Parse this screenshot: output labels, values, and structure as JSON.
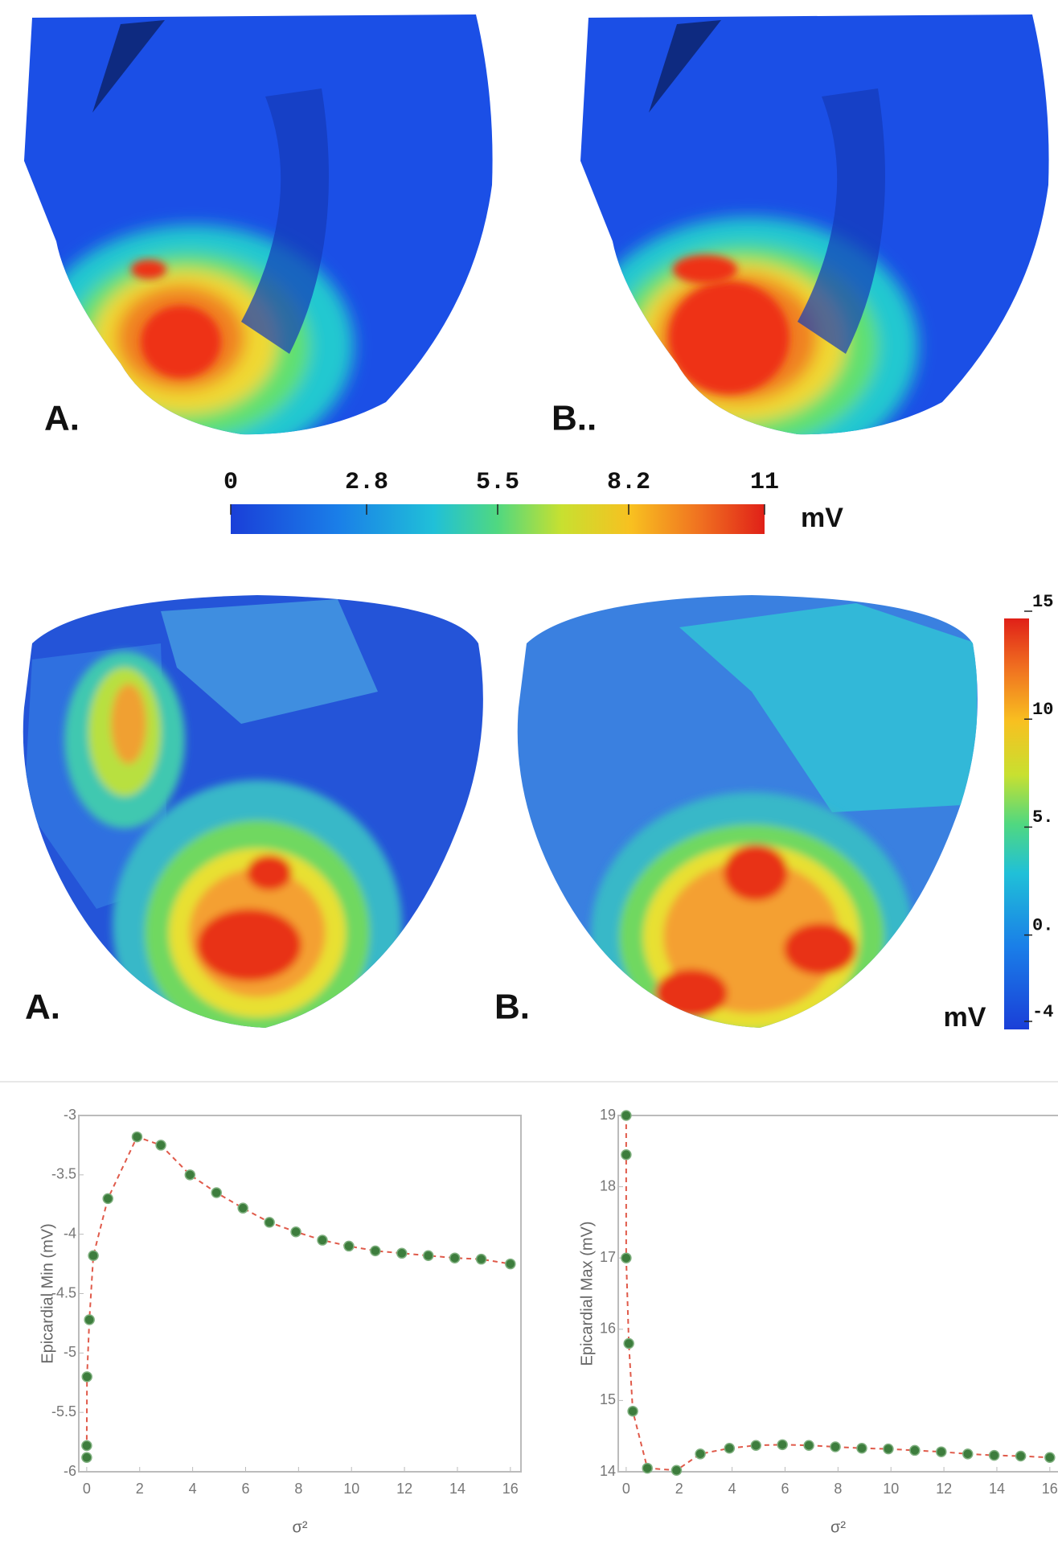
{
  "figure": {
    "top_labels": [
      "A.",
      "B.."
    ],
    "colorbar_1": {
      "lim": [
        0,
        11
      ],
      "ticks": [
        0,
        2.8,
        5.5,
        8.2,
        11
      ],
      "unit": "mV"
    },
    "bottom_labels": [
      "A.",
      "B."
    ],
    "colorbar_2": {
      "lim": [
        -4,
        15
      ],
      "ticks": [
        15,
        10,
        {
          "value": 5,
          "label": "5."
        },
        {
          "value": 0,
          "label": "0."
        },
        -4
      ],
      "unit": "mV"
    }
  },
  "chart_data": [
    {
      "type": "line",
      "ylabel": "Epicardial Min (mV)",
      "xlabel": "σ²",
      "x": [
        0,
        0,
        0.01,
        0.1,
        0.25,
        0.8,
        1.9,
        2.8,
        3.9,
        4.9,
        5.9,
        6.9,
        7.9,
        8.9,
        9.9,
        10.9,
        11.9,
        12.9,
        13.9,
        14.9,
        16
      ],
      "values": [
        -5.88,
        -5.78,
        -5.2,
        -4.72,
        -4.18,
        -3.7,
        -3.18,
        -3.25,
        -3.5,
        -3.65,
        -3.78,
        -3.9,
        -3.98,
        -4.05,
        -4.1,
        -4.14,
        -4.16,
        -4.18,
        -4.2,
        -4.21,
        -4.25
      ],
      "color": "#e05a4a",
      "marker_color": "#3d7d3d",
      "xlim": [
        -0.3,
        16.4
      ],
      "ylim": [
        -6,
        -3
      ],
      "xticks": [
        0,
        2,
        4,
        6,
        8,
        10,
        12,
        14,
        16
      ],
      "yticks": [
        -3,
        -3.5,
        -4,
        -4.5,
        -5,
        -5.5,
        -6
      ]
    },
    {
      "type": "line",
      "ylabel": "Epicardial Max (mV)",
      "xlabel": "σ²",
      "x": [
        0,
        0,
        0,
        0.1,
        0.25,
        0.8,
        1.9,
        2.8,
        3.9,
        4.9,
        5.9,
        6.9,
        7.9,
        8.9,
        9.9,
        10.9,
        11.9,
        12.9,
        13.9,
        14.9,
        16
      ],
      "values": [
        19,
        18.45,
        17,
        15.8,
        14.85,
        14.05,
        14.02,
        14.25,
        14.33,
        14.37,
        14.38,
        14.37,
        14.35,
        14.33,
        14.32,
        14.3,
        14.28,
        14.25,
        14.23,
        14.22,
        14.2
      ],
      "color": "#e05a4a",
      "marker_color": "#3d7d3d",
      "xlim": [
        -0.3,
        16.4
      ],
      "ylim": [
        14,
        19
      ],
      "xticks": [
        0,
        2,
        4,
        6,
        8,
        10,
        12,
        14,
        16
      ],
      "yticks": [
        14,
        15,
        16,
        17,
        18,
        19
      ]
    }
  ]
}
